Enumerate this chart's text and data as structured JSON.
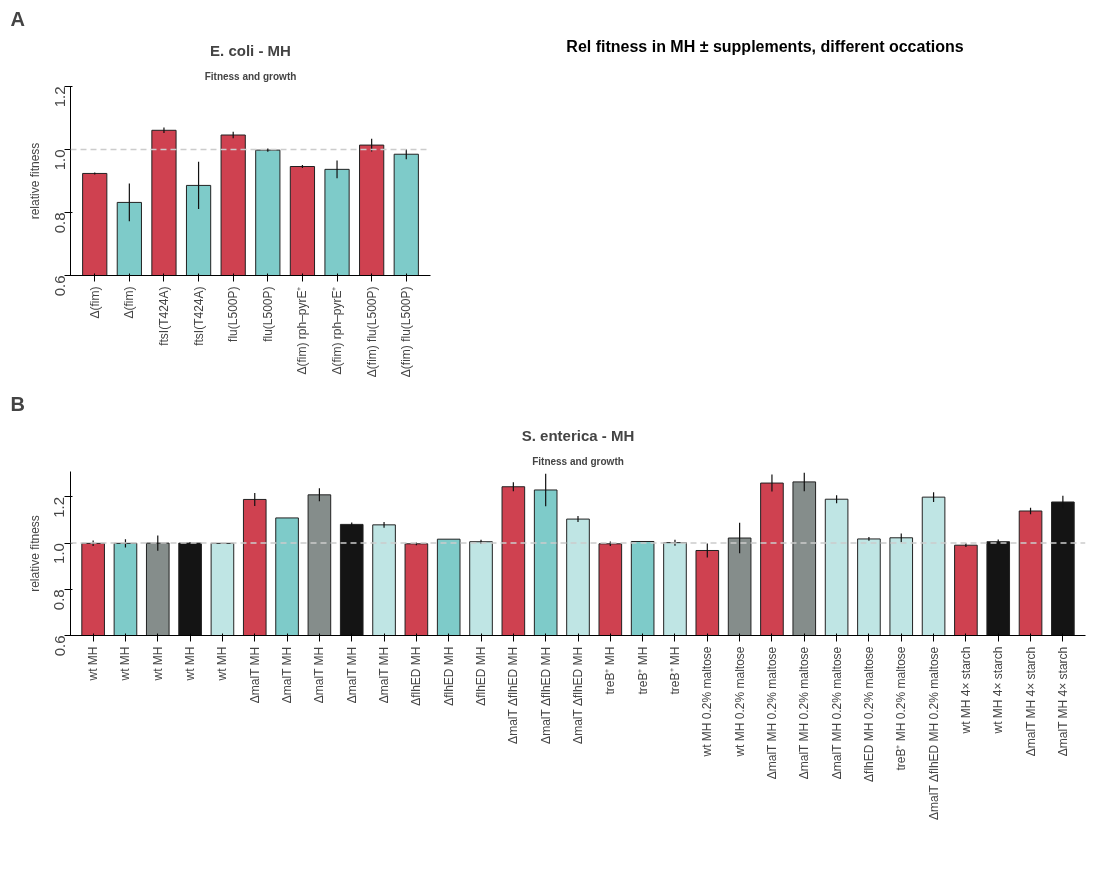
{
  "chart_data": [
    {
      "type": "bar",
      "title": "E. coli - MH",
      "subtitle": "Fitness and growth",
      "ylabel": "relative fitness",
      "annotations": [
        "A",
        "Rel fitness in MH ± supplements, different occations"
      ],
      "categories": [
        "Δ(fim)",
        "Δ(fim)",
        "ftsI(T424A)",
        "ftsI(T424A)",
        "flu(L500P)",
        "flu(L500P)",
        "Δ(fim) rph–pyrE⁺",
        "Δ(fim) rph–pyrE⁺",
        "Δ(fim) flu(L500P)",
        "Δ(fim) flu(L500P)"
      ],
      "values": [
        0.924,
        0.832,
        1.061,
        0.886,
        1.046,
        0.998,
        0.946,
        0.937,
        1.014,
        0.985
      ],
      "errors": [
        0.003,
        0.06,
        0.009,
        0.075,
        0.01,
        0.005,
        0.005,
        0.028,
        0.02,
        0.016
      ],
      "colors": [
        "#cf4150",
        "#7ecbc9",
        "#cf4150",
        "#7ecbc9",
        "#cf4150",
        "#7ecbc9",
        "#cf4150",
        "#7ecbc9",
        "#cf4150",
        "#7ecbc9"
      ],
      "ylim": [
        0.6,
        1.2
      ],
      "yticks": [
        {
          "value": 0.6,
          "label": "0.6"
        },
        {
          "value": 0.8,
          "label": "0.8"
        },
        {
          "value": 1.0,
          "label": "1.0"
        },
        {
          "value": 1.2,
          "label": "1.2"
        }
      ],
      "ref_lines": [
        {
          "axis": "y",
          "value": 1.0,
          "color": "#cccccc",
          "line_style": "dashed"
        }
      ]
    },
    {
      "type": "bar",
      "title": "S. enterica - MH",
      "subtitle": "Fitness and growth",
      "ylabel": "relative fitness",
      "annotations": [
        "B"
      ],
      "categories": [
        "wt MH",
        "wt MH",
        "wt MH",
        "wt MH",
        "wt MH",
        "ΔmalT MH",
        "ΔmalT MH",
        "ΔmalT MH",
        "ΔmalT MH",
        "ΔmalT MH",
        "ΔflhED MH",
        "ΔflhED MH",
        "ΔflhED MH",
        "ΔmalT ΔflhED MH",
        "ΔmalT ΔflhED MH",
        "ΔmalT ΔflhED MH",
        "treB⁺ MH",
        "treB⁺ MH",
        "treB⁺ MH",
        "wt MH 0.2% maltose",
        "wt MH 0.2% maltose",
        "ΔmalT MH 0.2% maltose",
        "ΔmalT MH 0.2% maltose",
        "ΔmalT MH 0.2% maltose",
        "ΔflhED MH 0.2% maltose",
        "treB⁺ MH 0.2% maltose",
        "ΔmalT ΔflhED MH 0.2% maltose",
        "wt MH 4× starch",
        "wt MH 4× starch",
        "ΔmalT MH 4× starch",
        "ΔmalT MH 4× starch"
      ],
      "values": [
        0.999,
        0.999,
        1.0,
        1.0,
        0.999,
        1.189,
        1.109,
        1.209,
        1.081,
        1.079,
        0.997,
        1.017,
        1.006,
        1.244,
        1.23,
        1.104,
        0.997,
        1.007,
        1.002,
        0.968,
        1.022,
        1.26,
        1.265,
        1.19,
        1.018,
        1.023,
        1.199,
        0.991,
        1.006,
        1.139,
        1.178
      ],
      "errors": [
        0.012,
        0.018,
        0.033,
        0.005,
        null,
        0.028,
        null,
        0.028,
        0.008,
        0.012,
        0.006,
        null,
        0.009,
        0.02,
        0.07,
        0.013,
        0.01,
        null,
        0.013,
        0.03,
        0.066,
        0.037,
        0.04,
        0.017,
        0.008,
        0.019,
        0.021,
        0.008,
        0.01,
        0.014,
        0.027
      ],
      "colors": [
        "#cf4150",
        "#7ecbc9",
        "#858d8b",
        "#141414",
        "#bfe5e4",
        "#cf4150",
        "#7ecbc9",
        "#858d8b",
        "#141414",
        "#bfe5e4",
        "#cf4150",
        "#7ecbc9",
        "#bfe5e4",
        "#cf4150",
        "#7ecbc9",
        "#bfe5e4",
        "#cf4150",
        "#7ecbc9",
        "#bfe5e4",
        "#cf4150",
        "#858d8b",
        "#cf4150",
        "#858d8b",
        "#bfe5e4",
        "#bfe5e4",
        "#bfe5e4",
        "#bfe5e4",
        "#cf4150",
        "#141414",
        "#cf4150",
        "#141414"
      ],
      "ylim": [
        0.6,
        1.31
      ],
      "yticks": [
        {
          "value": 0.6,
          "label": "0.6"
        },
        {
          "value": 0.8,
          "label": "0.8"
        },
        {
          "value": 1.0,
          "label": "1.0"
        },
        {
          "value": 1.2,
          "label": "1.2"
        }
      ],
      "ref_lines": [
        {
          "axis": "y",
          "value": 1.0,
          "color": "#cccccc",
          "line_style": "dashed"
        }
      ]
    }
  ]
}
